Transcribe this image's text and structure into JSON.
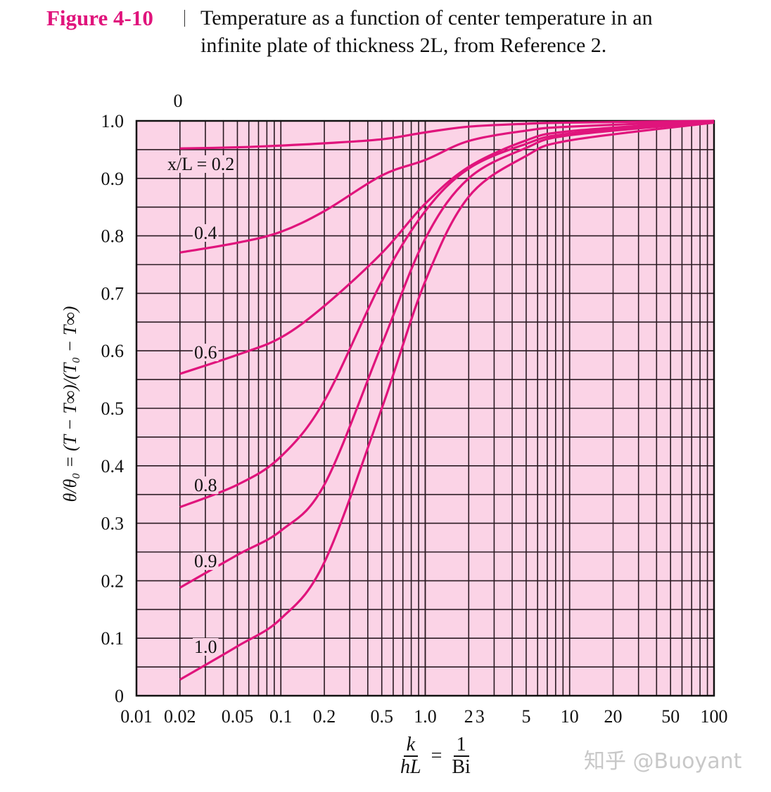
{
  "figure": {
    "number": "Figure 4-10",
    "caption_line1": "Temperature as a function of center temperature in an",
    "caption_line2": "infinite plate of thickness 2L, from Reference 2."
  },
  "watermark": "知乎 @Buoyant",
  "chart_data": {
    "type": "line",
    "x_scale": "log",
    "xlim": [
      0.01,
      100
    ],
    "ylim": [
      0,
      1.0
    ],
    "grid": true,
    "background_color": "#fbd3e6",
    "line_color": "#e0147c",
    "ylabel": "θ/θ₀ = (T − T∞)/(T₀ − T∞)",
    "xlabel": {
      "numerator": "k",
      "denominator": "hL",
      "equals": "=",
      "rhs_numerator": "1",
      "rhs_denominator": "Bi"
    },
    "top_label": "0",
    "x_ticks": [
      {
        "value": 0.01,
        "label": "0.01"
      },
      {
        "value": 0.02,
        "label": "0.02"
      },
      {
        "value": 0.05,
        "label": "0.05"
      },
      {
        "value": 0.1,
        "label": "0.1"
      },
      {
        "value": 0.2,
        "label": "0.2"
      },
      {
        "value": 0.5,
        "label": "0.5"
      },
      {
        "value": 1,
        "label": "1.0"
      },
      {
        "value": 2,
        "label": "2"
      },
      {
        "value": 3,
        "label": "3"
      },
      {
        "value": 5,
        "label": "5"
      },
      {
        "value": 10,
        "label": "10"
      },
      {
        "value": 20,
        "label": "20"
      },
      {
        "value": 50,
        "label": "50"
      },
      {
        "value": 100,
        "label": "100"
      }
    ],
    "y_ticks": [
      {
        "value": 0,
        "label": "0"
      },
      {
        "value": 0.1,
        "label": "0.1"
      },
      {
        "value": 0.2,
        "label": "0.2"
      },
      {
        "value": 0.3,
        "label": "0.3"
      },
      {
        "value": 0.4,
        "label": "0.4"
      },
      {
        "value": 0.5,
        "label": "0.5"
      },
      {
        "value": 0.6,
        "label": "0.6"
      },
      {
        "value": 0.7,
        "label": "0.7"
      },
      {
        "value": 0.8,
        "label": "0.8"
      },
      {
        "value": 0.9,
        "label": "0.9"
      },
      {
        "value": 1.0,
        "label": "1.0"
      }
    ],
    "x": [
      0.02,
      0.05,
      0.1,
      0.2,
      0.5,
      1.0,
      2,
      5,
      10,
      100
    ],
    "series": [
      {
        "name": "x/L = 0.2",
        "values": [
          0.952,
          0.954,
          0.957,
          0.961,
          0.968,
          0.98,
          0.99,
          0.995,
          0.997,
          1.0
        ]
      },
      {
        "name": "0.4",
        "values": [
          0.771,
          0.788,
          0.807,
          0.843,
          0.905,
          0.932,
          0.965,
          0.983,
          0.99,
          1.0
        ]
      },
      {
        "name": "0.6",
        "values": [
          0.56,
          0.593,
          0.623,
          0.678,
          0.77,
          0.856,
          0.92,
          0.966,
          0.982,
          1.0
        ]
      },
      {
        "name": "0.8",
        "values": [
          0.328,
          0.367,
          0.416,
          0.513,
          0.721,
          0.843,
          0.917,
          0.96,
          0.978,
          1.0
        ]
      },
      {
        "name": "0.9",
        "values": [
          0.188,
          0.245,
          0.287,
          0.367,
          0.611,
          0.795,
          0.9,
          0.953,
          0.975,
          0.998
        ]
      },
      {
        "name": "1.0",
        "values": [
          0.028,
          0.086,
          0.134,
          0.232,
          0.5,
          0.721,
          0.868,
          0.939,
          0.966,
          0.997
        ]
      }
    ]
  }
}
